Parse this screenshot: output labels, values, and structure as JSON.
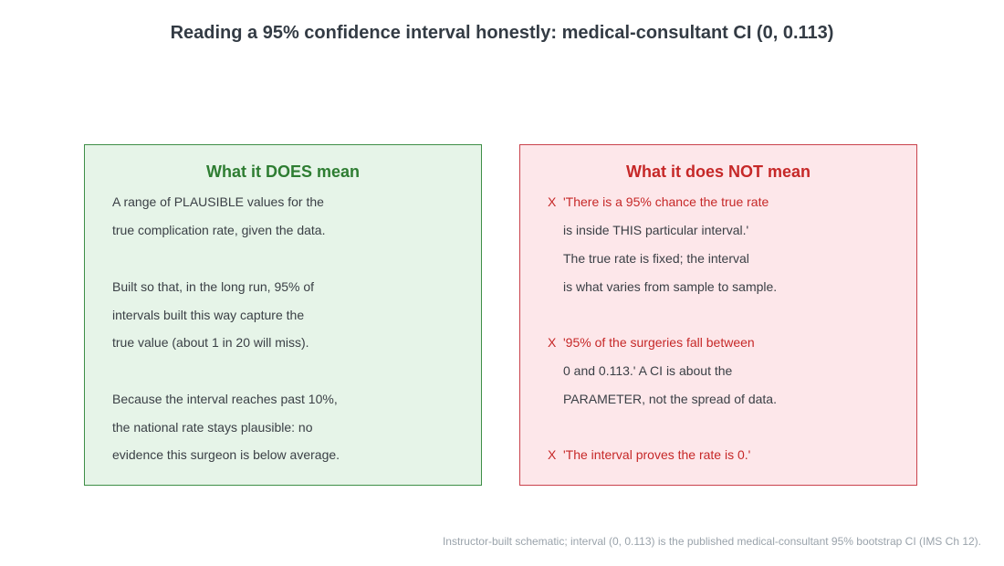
{
  "title": "Reading a 95% confidence interval honestly: medical-consultant CI (0, 0.113)",
  "does": {
    "heading": "What it DOES mean",
    "lines": [
      "A range of PLAUSIBLE values for the",
      "true complication rate, given the data.",
      "Built so that, in the long run, 95% of",
      "intervals built this way capture the",
      "true value (about 1 in 20 will miss).",
      "Because the interval reaches past 10%,",
      "the national rate stays plausible: no",
      "evidence this surgeon is below average."
    ]
  },
  "not": {
    "heading": "What it does NOT mean",
    "mark": "X",
    "lines": [
      "'There is a 95% chance the true rate",
      "is inside THIS particular interval.'",
      "The true rate is fixed; the interval",
      "is what varies from sample to sample.",
      "'95% of the surgeries fall between",
      "0 and 0.113.'  A CI is about the",
      "PARAMETER, not the spread of data.",
      "'The interval proves the rate is 0.'"
    ]
  },
  "footnote": "Instructor-built schematic; interval (0, 0.113) is the published medical-consultant 95% bootstrap CI (IMS Ch 12).",
  "colors": {
    "does_accent": "#2e7d32",
    "does_background": "#e6f4e8",
    "not_accent": "#c62828",
    "not_background": "#fde7ea"
  }
}
